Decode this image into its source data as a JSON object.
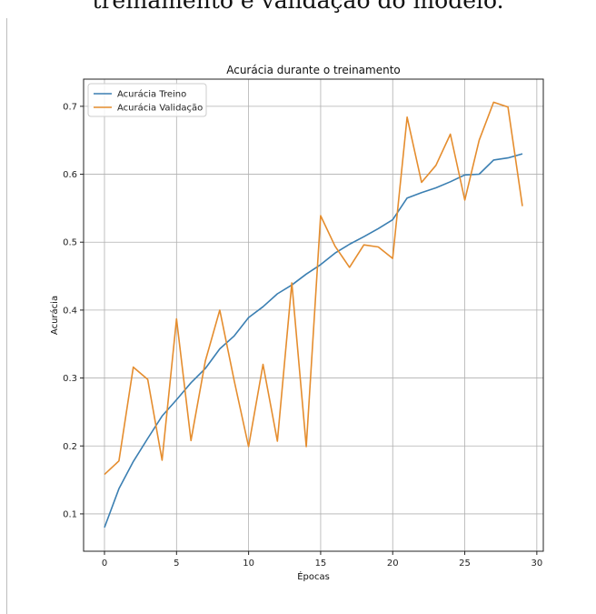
{
  "page": {
    "caption_fragment": "treinamento e validação do modelo."
  },
  "chart_data": {
    "type": "line",
    "title": "Acurácia durante o treinamento",
    "xlabel": "Épocas",
    "ylabel": "Acurácia",
    "xlim": [
      -1.45,
      30.45
    ],
    "ylim": [
      0.045,
      0.74
    ],
    "xticks": [
      0,
      5,
      10,
      15,
      20,
      25,
      30
    ],
    "yticks": [
      0.1,
      0.2,
      0.3,
      0.4,
      0.5,
      0.6,
      0.7
    ],
    "grid": true,
    "legend": "top-left",
    "x": [
      0,
      1,
      2,
      3,
      4,
      5,
      6,
      7,
      8,
      9,
      10,
      11,
      12,
      13,
      14,
      15,
      16,
      17,
      18,
      19,
      20,
      21,
      22,
      23,
      24,
      25,
      26,
      27,
      28,
      29
    ],
    "series": [
      {
        "name": "Acurácia Treino",
        "color": "#3b7fb2",
        "values": [
          0.08,
          0.137,
          0.177,
          0.211,
          0.244,
          0.268,
          0.293,
          0.314,
          0.343,
          0.362,
          0.389,
          0.405,
          0.424,
          0.437,
          0.453,
          0.467,
          0.484,
          0.497,
          0.508,
          0.52,
          0.533,
          0.565,
          0.573,
          0.58,
          0.589,
          0.599,
          0.6,
          0.621,
          0.624,
          0.63
        ]
      },
      {
        "name": "Acurácia Validação",
        "color": "#e58d2e",
        "values": [
          0.158,
          0.178,
          0.316,
          0.298,
          0.179,
          0.387,
          0.208,
          0.325,
          0.4,
          0.296,
          0.199,
          0.32,
          0.207,
          0.44,
          0.199,
          0.539,
          0.494,
          0.463,
          0.496,
          0.493,
          0.476,
          0.684,
          0.588,
          0.613,
          0.659,
          0.562,
          0.65,
          0.706,
          0.699,
          0.553
        ]
      }
    ]
  }
}
